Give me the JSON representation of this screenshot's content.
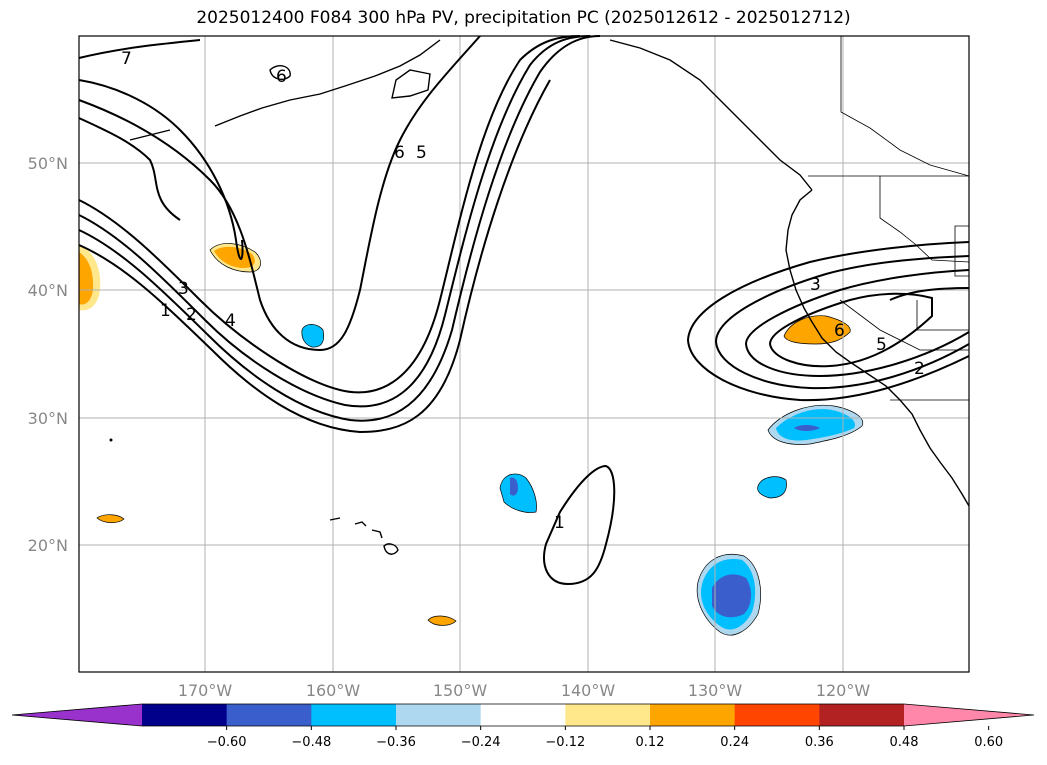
{
  "title": "2025012400 F084 300 hPa PV, precipitation PC (2025012612 - 2025012712)",
  "map": {
    "extent": {
      "lon_min": -180,
      "lon_max": -110,
      "lat_min": 10,
      "lat_max": 60
    },
    "lat_ticks": [
      "20°N",
      "30°N",
      "40°N",
      "50°N"
    ],
    "lon_ticks": [
      "170°W",
      "160°W",
      "150°W",
      "140°W",
      "130°W",
      "120°W"
    ],
    "grid": true,
    "coast_color": "#000000",
    "pv_contour_labels": [
      "7",
      "6",
      "6",
      "5",
      "3",
      "2",
      "1",
      "4",
      "1",
      "3",
      "6",
      "5",
      "2"
    ]
  },
  "colorbar": {
    "ticks": [
      "−0.60",
      "−0.48",
      "−0.36",
      "−0.24",
      "−0.12",
      "0.12",
      "0.24",
      "0.36",
      "0.48",
      "0.60"
    ],
    "colors": [
      "#9932cc",
      "#00008b",
      "#3a5fcd",
      "#00bfff",
      "#add8f0",
      "#ffffff",
      "#ffe88c",
      "#ffa500",
      "#ff4500",
      "#b22222",
      "#ff88aa"
    ],
    "extend": "both"
  }
}
